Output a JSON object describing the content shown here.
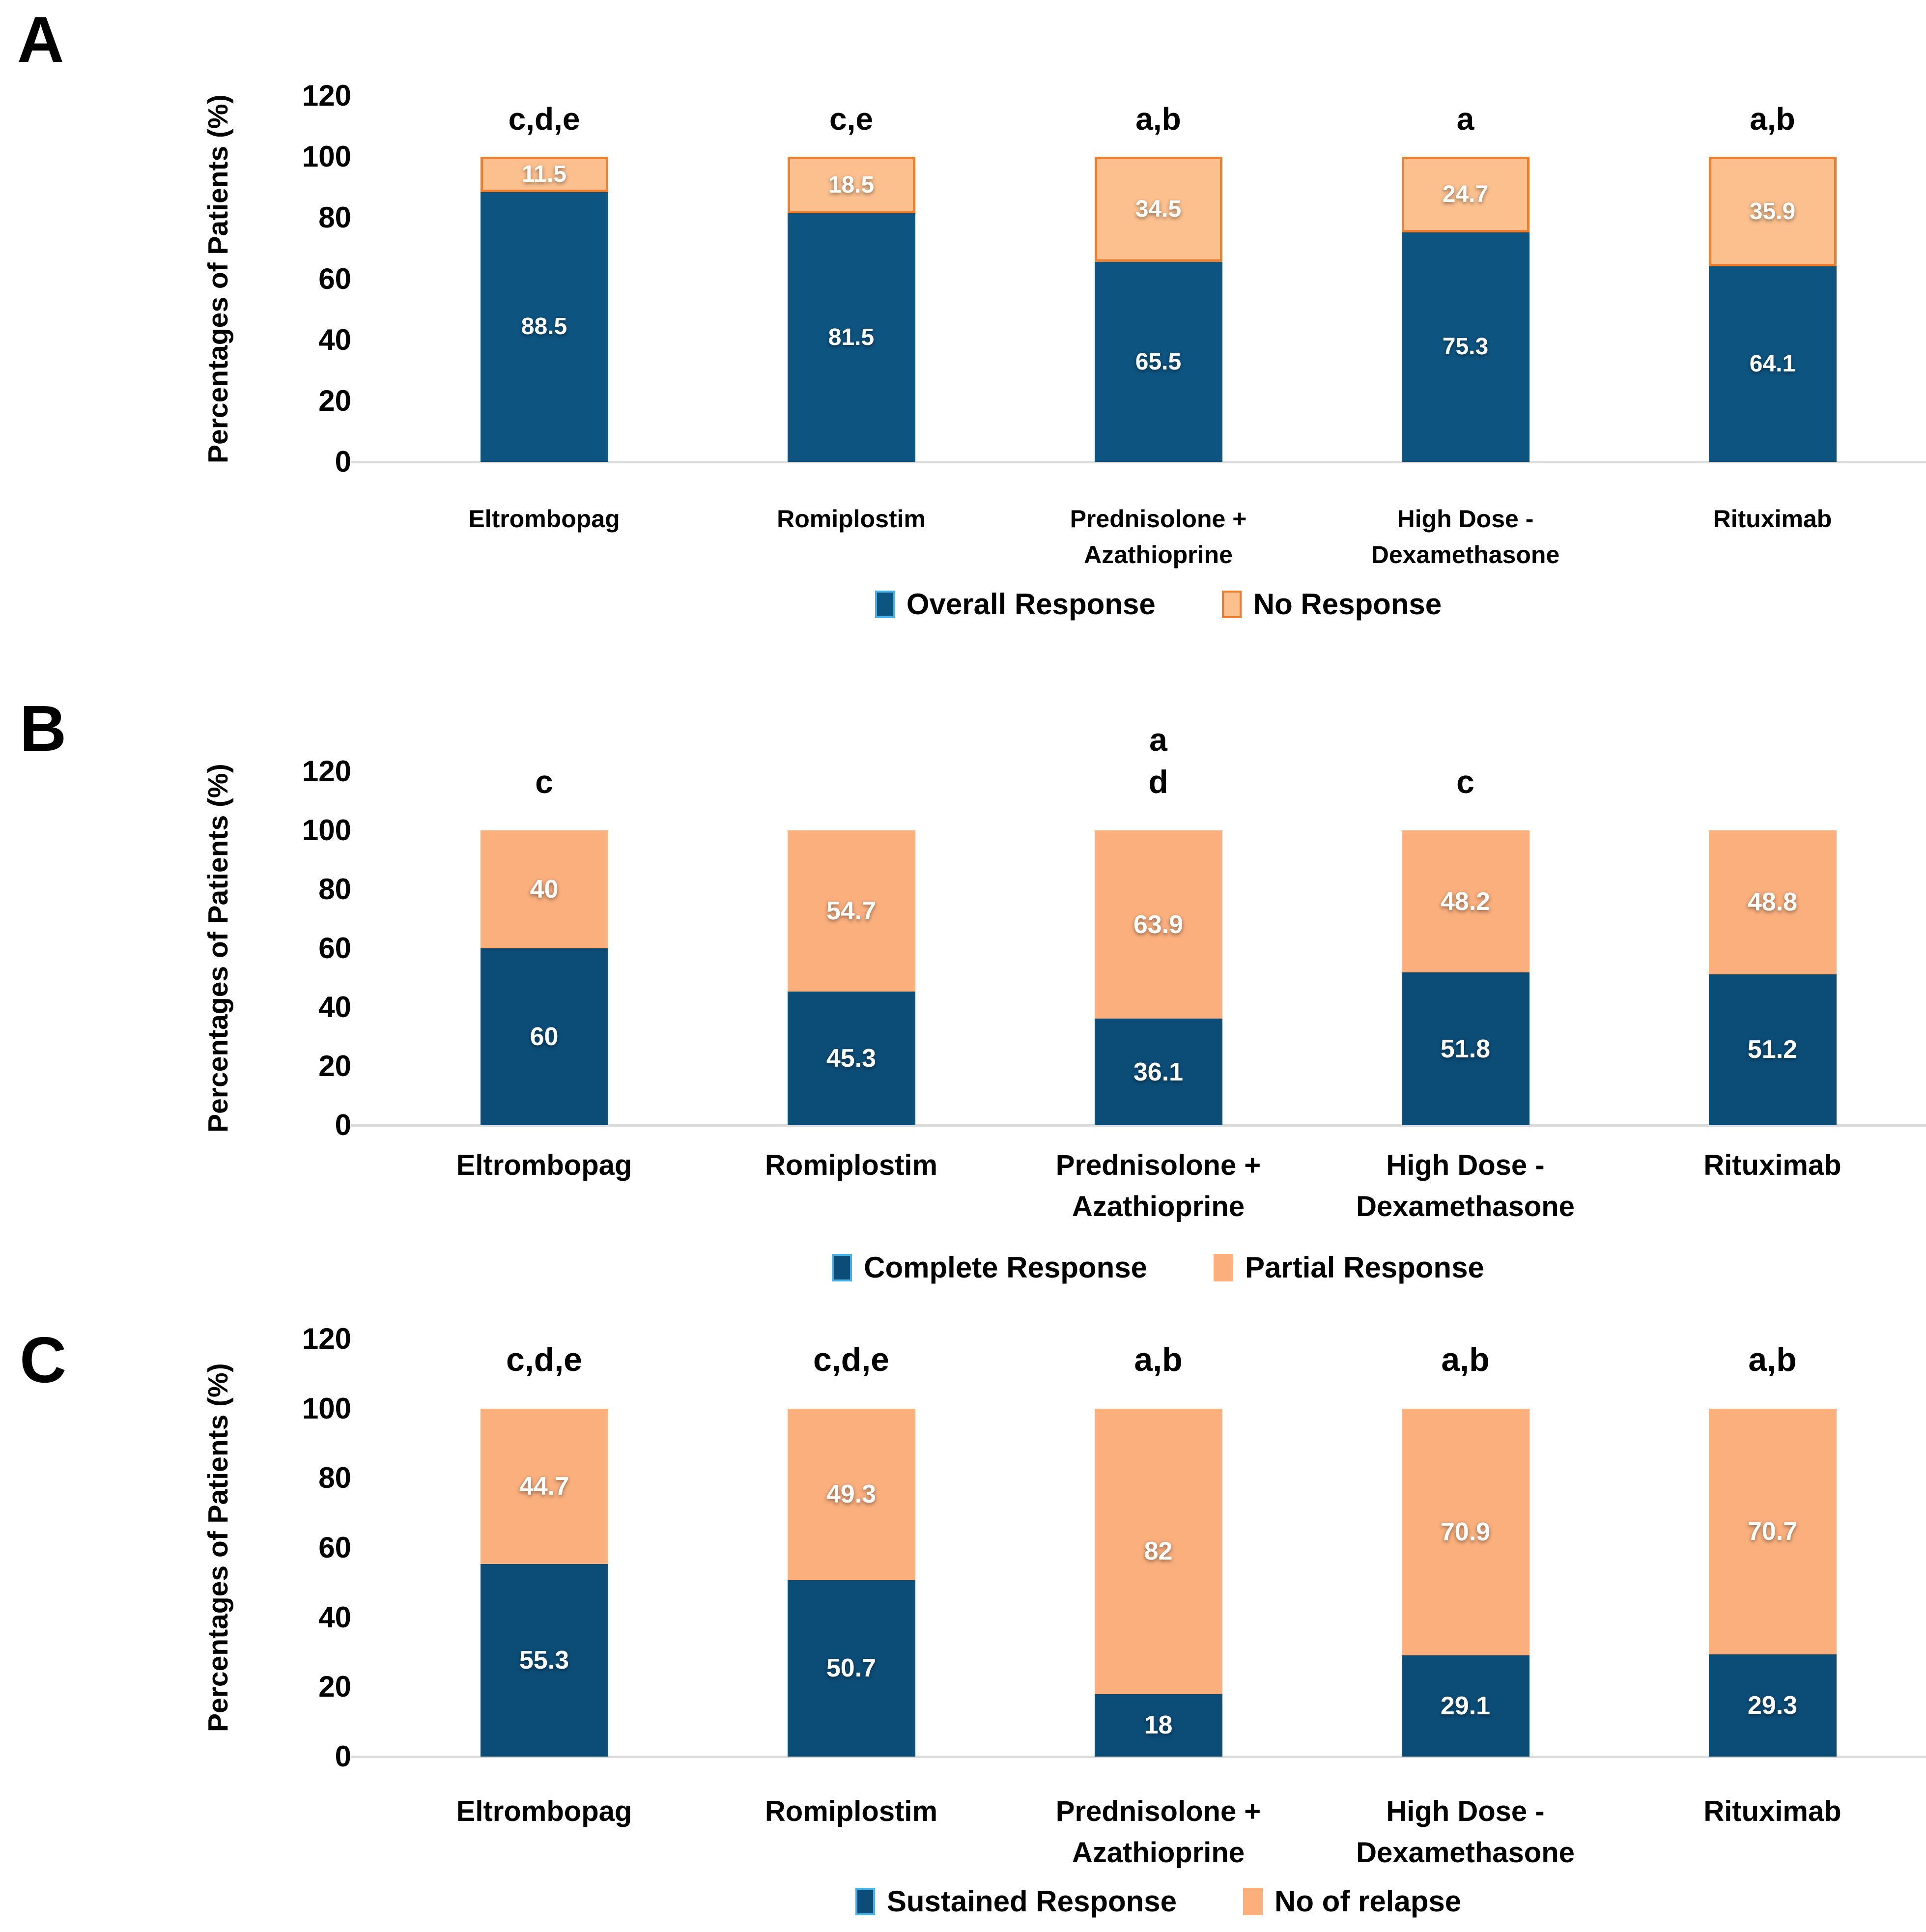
{
  "axis": {
    "y_title": "Percentages of Patients (%)",
    "y_ticks": [
      120,
      100,
      80,
      60,
      40,
      20,
      0
    ],
    "y_max": 120
  },
  "categories_lines": [
    [
      "Eltrombopag"
    ],
    [
      "Romiplostim"
    ],
    [
      "Prednisolone +",
      "Azathioprine"
    ],
    [
      "High Dose -",
      "Dexamethasone"
    ],
    [
      "Rituximab"
    ]
  ],
  "colors": {
    "blue_a": "#0E5480",
    "blue_bc": "#0C4D78",
    "orange_a_fill": "#FBC08E",
    "orange_a_border": "#ED7D31",
    "orange_bc_fill": "#FAAF7D",
    "axis_line": "#DBDBDB",
    "value_text": "#FFFFFF",
    "legend_blue_border": "#45B0E5",
    "legend_orange_border": "#ED7D31",
    "text": "#000000"
  },
  "chart_data": [
    {
      "type": "bar",
      "stacked": true,
      "panel": "A",
      "categories": [
        "Eltrombopag",
        "Romiplostim",
        "Prednisolone + Azathioprine",
        "High Dose - Dexamethasone",
        "Rituximab"
      ],
      "series": [
        {
          "name": "Overall Response",
          "color": "blue",
          "values": [
            88.5,
            81.5,
            65.5,
            75.3,
            64.1
          ]
        },
        {
          "name": "No Response",
          "color": "orange",
          "values": [
            11.5,
            18.5,
            34.5,
            24.7,
            35.9
          ]
        }
      ],
      "significance": [
        [
          "c,d,e"
        ],
        [
          "c,e"
        ],
        [
          "a,b"
        ],
        [
          "a"
        ],
        [
          "a,b"
        ]
      ],
      "ylabel": "Percentages of Patients (%)",
      "ylim": [
        0,
        120
      ],
      "yticks": [
        0,
        20,
        40,
        60,
        80,
        100,
        120
      ],
      "grid": false,
      "legend_position": "bottom"
    },
    {
      "type": "bar",
      "stacked": true,
      "panel": "B",
      "categories": [
        "Eltrombopag",
        "Romiplostim",
        "Prednisolone + Azathioprine",
        "High Dose - Dexamethasone",
        "Rituximab"
      ],
      "series": [
        {
          "name": "Complete Response",
          "color": "blue",
          "values": [
            60,
            45.3,
            36.1,
            51.8,
            51.2
          ]
        },
        {
          "name": "Partial Response",
          "color": "orange",
          "values": [
            40,
            54.7,
            63.9,
            48.2,
            48.8
          ]
        }
      ],
      "significance": [
        [
          "c"
        ],
        [],
        [
          "a",
          "d"
        ],
        [
          "c"
        ],
        []
      ],
      "ylabel": "Percentages of Patients (%)",
      "ylim": [
        0,
        120
      ],
      "yticks": [
        0,
        20,
        40,
        60,
        80,
        100,
        120
      ],
      "grid": false,
      "legend_position": "bottom"
    },
    {
      "type": "bar",
      "stacked": true,
      "panel": "C",
      "categories": [
        "Eltrombopag",
        "Romiplostim",
        "Prednisolone + Azathioprine",
        "High Dose - Dexamethasone",
        "Rituximab"
      ],
      "series": [
        {
          "name": "Sustained Response",
          "color": "blue",
          "values": [
            55.3,
            50.7,
            18,
            29.1,
            29.3
          ]
        },
        {
          "name": "No of relapse",
          "color": "orange",
          "values": [
            44.7,
            49.3,
            82,
            70.9,
            70.7
          ]
        }
      ],
      "significance": [
        [
          "c,d,e"
        ],
        [
          "c,d,e"
        ],
        [
          "a,b"
        ],
        [
          "a,b"
        ],
        [
          "a,b"
        ]
      ],
      "ylabel": "Percentages of Patients (%)",
      "ylim": [
        0,
        120
      ],
      "yticks": [
        0,
        20,
        40,
        60,
        80,
        100,
        120
      ],
      "grid": false,
      "legend_position": "bottom"
    }
  ]
}
